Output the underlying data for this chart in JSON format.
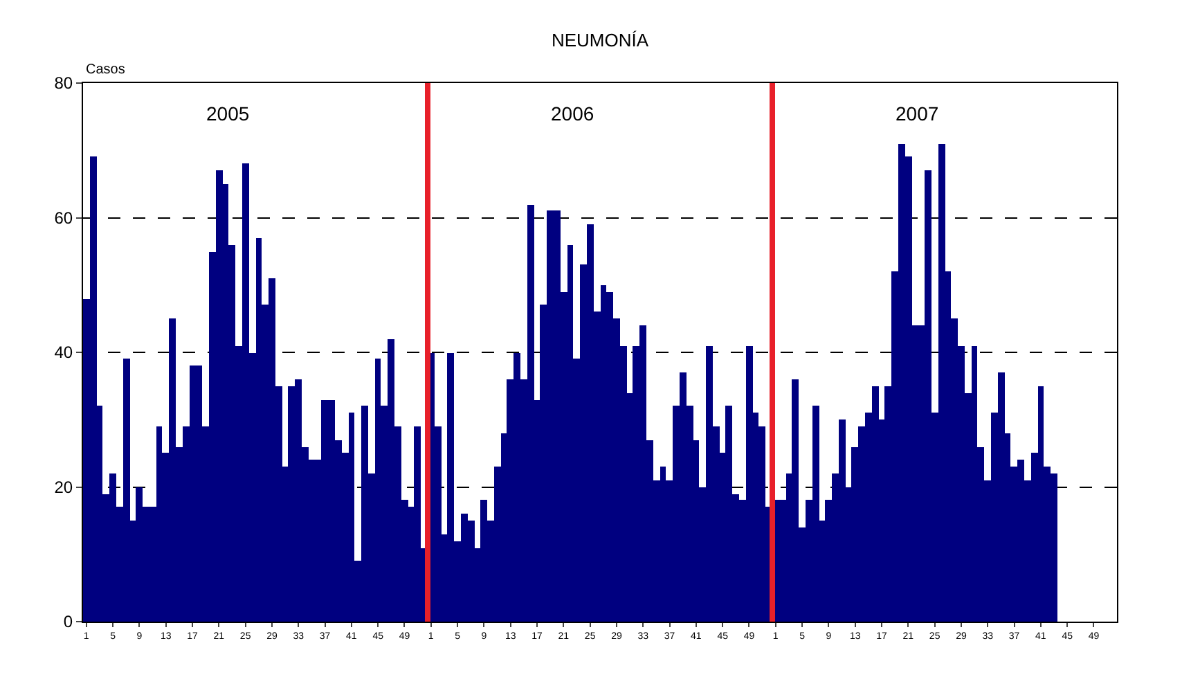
{
  "chart_data": {
    "type": "bar",
    "title": "NEUMONÍA",
    "ylabel": "Casos",
    "color": "#000080",
    "categories": [
      "1",
      null,
      null,
      null,
      "5",
      null,
      null,
      null,
      "9",
      null,
      null,
      null,
      "13",
      null,
      null,
      null,
      "17",
      null,
      null,
      null,
      "21",
      null,
      null,
      null,
      "25",
      null,
      null,
      null,
      "29",
      null,
      null,
      null,
      "33",
      null,
      null,
      null,
      "37",
      null,
      null,
      null,
      "41",
      null,
      null,
      null,
      "45",
      null,
      null,
      null,
      "49",
      null,
      null,
      null,
      "1",
      null,
      null,
      null,
      "5",
      null,
      null,
      null,
      "9",
      null,
      null,
      null,
      "13",
      null,
      null,
      null,
      "17",
      null,
      null,
      null,
      "21",
      null,
      null,
      null,
      "25",
      null,
      null,
      null,
      "29",
      null,
      null,
      null,
      "33",
      null,
      null,
      null,
      "37",
      null,
      null,
      null,
      "41",
      null,
      null,
      null,
      "45",
      null,
      null,
      null,
      "49",
      null,
      null,
      null,
      "1",
      null,
      null,
      null,
      "5",
      null,
      null,
      null,
      "9",
      null,
      null,
      null,
      "13",
      null,
      null,
      null,
      "17",
      null,
      null,
      null,
      "21",
      null,
      null,
      null,
      "25",
      null,
      null,
      null,
      "29",
      null,
      null,
      null,
      "33",
      null,
      null,
      null,
      "37",
      null,
      null,
      null,
      "41",
      null,
      null,
      null,
      "45",
      null,
      null,
      null,
      "49",
      null,
      null,
      null
    ],
    "values": [
      48,
      69,
      32,
      19,
      22,
      17,
      39,
      15,
      20,
      17,
      17,
      29,
      25,
      45,
      26,
      29,
      38,
      38,
      29,
      55,
      67,
      65,
      56,
      41,
      68,
      40,
      57,
      47,
      51,
      35,
      23,
      35,
      36,
      26,
      24,
      24,
      33,
      33,
      27,
      25,
      31,
      9,
      32,
      22,
      39,
      32,
      42,
      29,
      18,
      17,
      29,
      11,
      40,
      29,
      13,
      40,
      12,
      16,
      15,
      11,
      18,
      15,
      23,
      28,
      36,
      40,
      36,
      62,
      33,
      47,
      61,
      61,
      49,
      56,
      39,
      53,
      59,
      46,
      50,
      49,
      45,
      41,
      34,
      41,
      44,
      27,
      21,
      23,
      21,
      32,
      37,
      32,
      27,
      20,
      41,
      29,
      25,
      32,
      19,
      18,
      41,
      31,
      29,
      17,
      18,
      18,
      22,
      36,
      14,
      18,
      32,
      15,
      18,
      22,
      30,
      20,
      26,
      29,
      31,
      35,
      30,
      35,
      52,
      71,
      69,
      44,
      44,
      67,
      31,
      71,
      52,
      45,
      41,
      34,
      41,
      26,
      21,
      31,
      37,
      28,
      23,
      24,
      21,
      25,
      35,
      23,
      22,
      null,
      null,
      null,
      null,
      null,
      null,
      null,
      null,
      null
    ],
    "ylim": [
      0,
      80
    ],
    "yticks": [
      0,
      20,
      40,
      60,
      80
    ],
    "grid": "y",
    "annotations": [
      "2005",
      "2006",
      "2007"
    ]
  }
}
